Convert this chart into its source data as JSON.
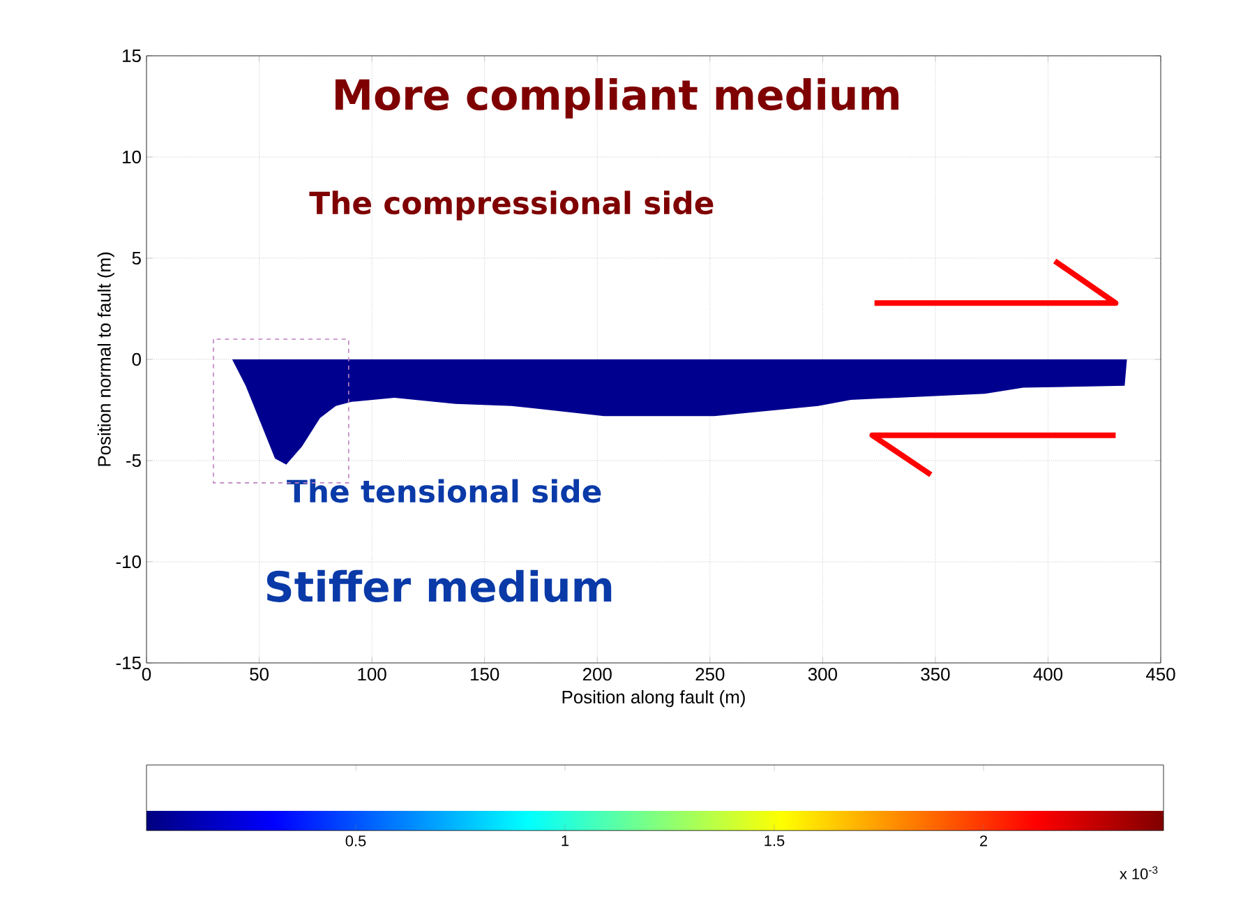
{
  "chart_data": {
    "type": "area",
    "xlabel": "Position along fault (m)",
    "ylabel": "Position normal to fault (m)",
    "x": [
      37,
      38,
      44,
      50.5,
      57,
      62,
      69,
      77,
      84,
      91,
      110,
      137,
      162,
      203,
      252,
      298,
      312.5,
      372,
      389,
      434,
      435
    ],
    "values": [
      0,
      0,
      -1.3,
      -3.1,
      -4.9,
      -5.2,
      -4.3,
      -2.9,
      -2.3,
      -2.1,
      -1.9,
      -2.2,
      -2.3,
      -2.8,
      -2.8,
      -2.3,
      -2,
      -1.7,
      -1.4,
      -1.3,
      0
    ],
    "color": "#00008f",
    "xlim": [
      0,
      450
    ],
    "ylim": [
      -15,
      15
    ],
    "xticks": [
      0,
      50,
      100,
      150,
      200,
      250,
      300,
      350,
      400,
      450
    ],
    "yticks": [
      -15,
      -10,
      -5,
      0,
      5,
      10,
      15
    ],
    "grid": true,
    "clim": [
      0,
      2.43
    ],
    "cticks": [
      0.5,
      1,
      1.5,
      2
    ],
    "clabel": "x 10$^{-3}$",
    "annotations": [
      "More compliant medium",
      "The compressional side",
      "The tensional side",
      "Stiffer medium"
    ]
  }
}
